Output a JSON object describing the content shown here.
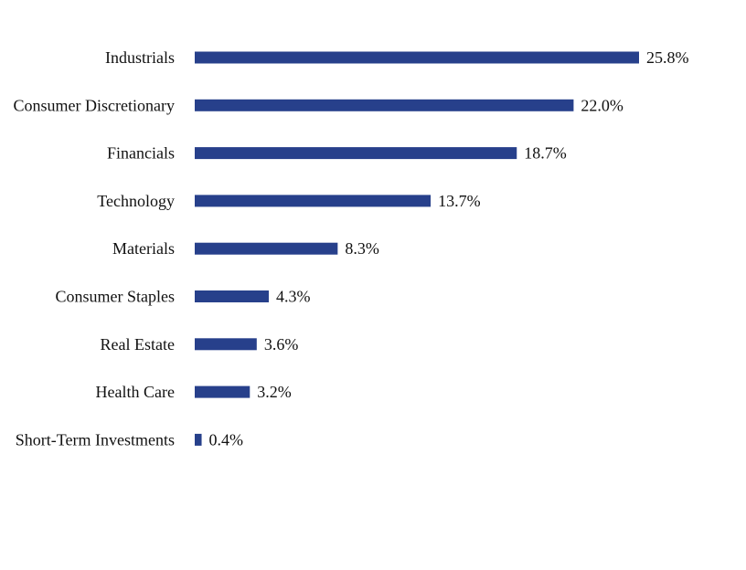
{
  "chart_data": {
    "type": "bar",
    "orientation": "horizontal",
    "categories": [
      "Industrials",
      "Consumer Discretionary",
      "Financials",
      "Technology",
      "Materials",
      "Consumer Staples",
      "Real Estate",
      "Health Care",
      "Short-Term Investments"
    ],
    "values": [
      25.8,
      22.0,
      18.7,
      13.7,
      8.3,
      4.3,
      3.6,
      3.2,
      0.4
    ],
    "value_labels": [
      "25.8%",
      "22.0%",
      "18.7%",
      "13.7%",
      "8.3%",
      "4.3%",
      "3.6%",
      "3.2%",
      "0.4%"
    ],
    "bar_color": "#27408B",
    "xlim": [
      0,
      25.8
    ],
    "grid": false,
    "legend": "none"
  }
}
